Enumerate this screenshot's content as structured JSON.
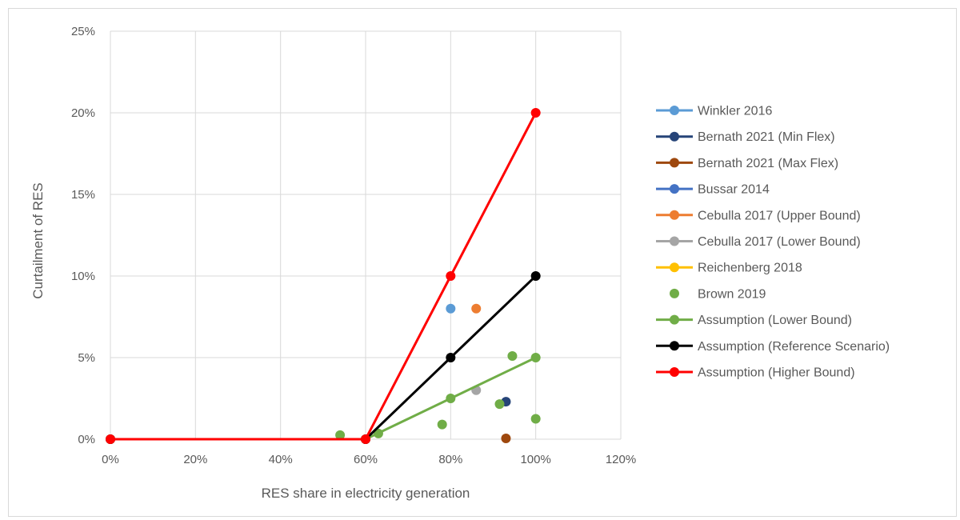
{
  "chart_data": {
    "type": "scatter",
    "xlabel": "RES share in electricity generation",
    "ylabel": "Curtailment of RES",
    "xlim": [
      0,
      120
    ],
    "ylim": [
      0,
      25
    ],
    "x_ticks": [
      0,
      20,
      40,
      60,
      80,
      100,
      120
    ],
    "y_ticks": [
      0,
      5,
      10,
      15,
      20,
      25
    ],
    "x_tick_labels": [
      "0%",
      "20%",
      "40%",
      "60%",
      "80%",
      "100%",
      "120%"
    ],
    "y_tick_labels": [
      "0%",
      "5%",
      "10%",
      "15%",
      "20%",
      "25%"
    ],
    "grid": "vertical and horizontal",
    "legend_position": "right",
    "series": [
      {
        "name": "Winkler 2016",
        "color": "#5b9bd5",
        "marker": "line-marker",
        "points": [
          [
            80,
            8.0
          ]
        ]
      },
      {
        "name": "Bernath 2021 (Min Flex)",
        "color": "#264478",
        "marker": "line-marker",
        "points": [
          [
            93,
            2.3
          ]
        ]
      },
      {
        "name": "Bernath 2021 (Max Flex)",
        "color": "#9e480e",
        "marker": "line-marker",
        "points": [
          [
            93,
            0.05
          ]
        ]
      },
      {
        "name": "Bussar 2014",
        "color": "#4472c4",
        "marker": "line-marker",
        "points": []
      },
      {
        "name": "Cebulla 2017 (Upper Bound)",
        "color": "#ed7d31",
        "marker": "line-marker",
        "points": [
          [
            86,
            8.0
          ]
        ]
      },
      {
        "name": "Cebulla 2017 (Lower Bound)",
        "color": "#a5a5a5",
        "marker": "line-marker",
        "points": [
          [
            86,
            3.0
          ]
        ]
      },
      {
        "name": "Reichenberg 2018",
        "color": "#ffc000",
        "marker": "line-marker",
        "points": []
      },
      {
        "name": "Brown 2019",
        "color": "#70ad47",
        "marker": "marker-only",
        "points": [
          [
            54,
            0.25
          ],
          [
            63,
            0.35
          ],
          [
            78,
            0.9
          ],
          [
            91.5,
            2.15
          ],
          [
            94.5,
            5.1
          ],
          [
            100,
            1.25
          ]
        ]
      },
      {
        "name": "Assumption (Lower Bound)",
        "color": "#70ad47",
        "marker": "line",
        "points": [
          [
            0,
            0
          ],
          [
            60,
            0
          ],
          [
            80,
            2.5
          ],
          [
            100,
            5
          ]
        ]
      },
      {
        "name": "Assumption (Reference Scenario)",
        "color": "#000000",
        "marker": "line",
        "points": [
          [
            0,
            0
          ],
          [
            60,
            0
          ],
          [
            80,
            5
          ],
          [
            100,
            10
          ]
        ]
      },
      {
        "name": "Assumption (Higher Bound)",
        "color": "#ff0000",
        "marker": "line",
        "points": [
          [
            0,
            0
          ],
          [
            60,
            0
          ],
          [
            80,
            10
          ],
          [
            100,
            20
          ]
        ]
      }
    ]
  }
}
